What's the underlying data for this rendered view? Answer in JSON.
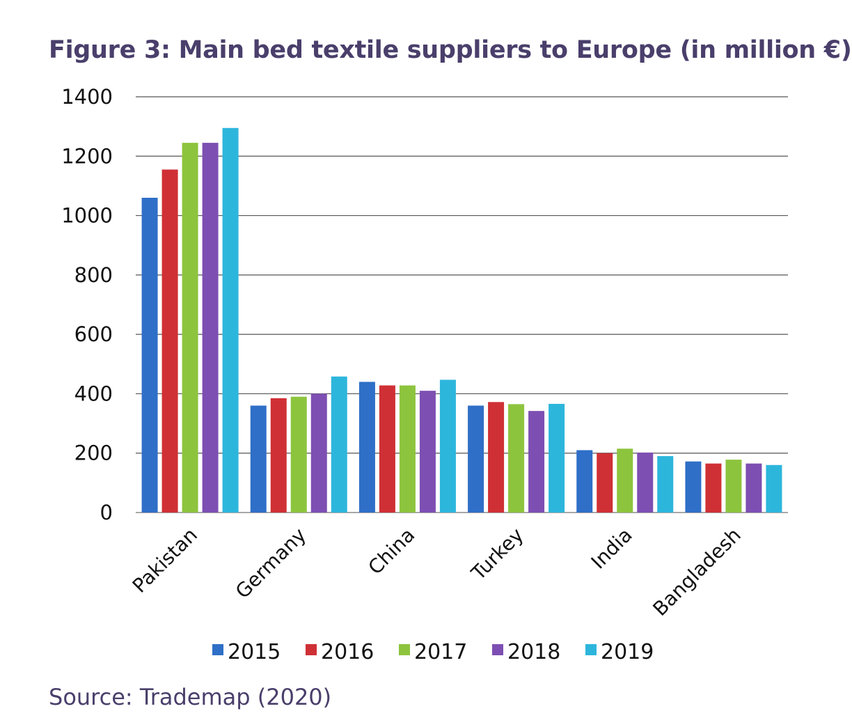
{
  "title": "Figure 3: Main bed textile suppliers to Europe (in million €)",
  "source": "Source: Trademap (2020)",
  "chart_data": {
    "type": "bar",
    "categories": [
      "Pakistan",
      "Germany",
      "China",
      "Turkey",
      "India",
      "Bangladesh"
    ],
    "series": [
      {
        "name": "2015",
        "color": "#2f6fc7",
        "values": [
          1060,
          360,
          440,
          360,
          210,
          172
        ]
      },
      {
        "name": "2016",
        "color": "#cf3035",
        "values": [
          1155,
          385,
          428,
          372,
          200,
          165
        ]
      },
      {
        "name": "2017",
        "color": "#8dc43e",
        "values": [
          1245,
          390,
          428,
          365,
          215,
          178
        ]
      },
      {
        "name": "2018",
        "color": "#7d4fb2",
        "values": [
          1245,
          400,
          410,
          342,
          202,
          165
        ]
      },
      {
        "name": "2019",
        "color": "#2db6dc",
        "values": [
          1295,
          458,
          447,
          366,
          190,
          160
        ]
      }
    ],
    "ylim": [
      0,
      1400
    ],
    "yticks": [
      0,
      200,
      400,
      600,
      800,
      1000,
      1200,
      1400
    ],
    "grid": true,
    "legend_position": "bottom"
  }
}
